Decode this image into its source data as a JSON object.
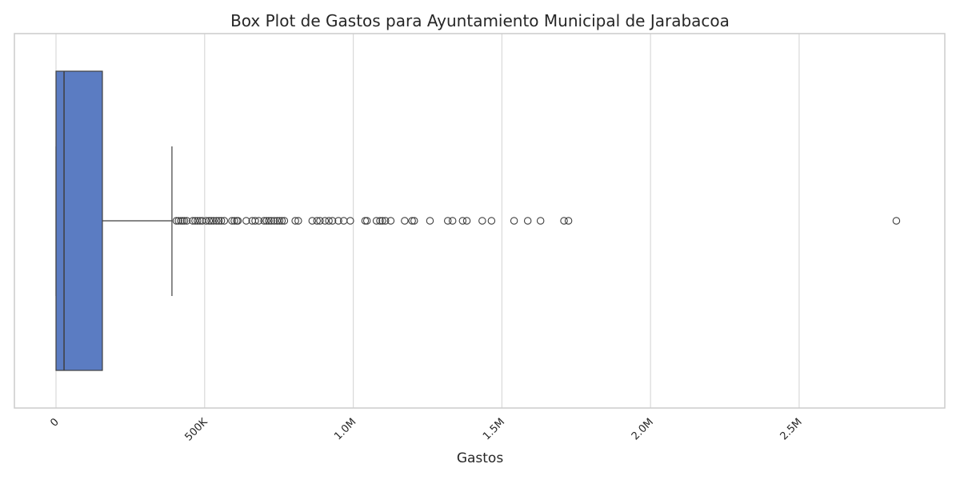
{
  "chart_data": {
    "type": "box",
    "orientation": "horizontal",
    "title": "Box Plot de Gastos para Ayuntamiento Municipal de Jarabacoa",
    "xlabel": "Gastos",
    "ylabel": "",
    "xlim": [
      -140000,
      2990000
    ],
    "grid": true,
    "colors": {
      "box_fill": "#5b7cc2",
      "line": "#3f3f3f",
      "grid": "#d9d9d9",
      "frame": "#cccccc"
    },
    "ticks": [
      {
        "value": 0,
        "label": "0"
      },
      {
        "value": 500000,
        "label": "500K"
      },
      {
        "value": 1000000,
        "label": "1.0M"
      },
      {
        "value": 1500000,
        "label": "1.5M"
      },
      {
        "value": 2000000,
        "label": "2.0M"
      },
      {
        "value": 2500000,
        "label": "2.5M"
      }
    ],
    "stats": {
      "min": 0,
      "q1": 0,
      "median": 27000,
      "q3": 156000,
      "whisker_high": 390000
    },
    "outliers": [
      405000,
      412000,
      420000,
      426000,
      432000,
      440000,
      460000,
      468000,
      476000,
      484000,
      492000,
      505000,
      515000,
      522000,
      530000,
      540000,
      548000,
      556000,
      566000,
      592000,
      600000,
      608000,
      612000,
      640000,
      660000,
      670000,
      682000,
      700000,
      708000,
      716000,
      724000,
      734000,
      744000,
      752000,
      760000,
      768000,
      805000,
      815000,
      862000,
      878000,
      888000,
      905000,
      918000,
      930000,
      950000,
      968000,
      990000,
      1040000,
      1046000,
      1078000,
      1090000,
      1098000,
      1108000,
      1126000,
      1173000,
      1198000,
      1205000,
      1258000,
      1318000,
      1334000,
      1368000,
      1382000,
      1434000,
      1465000,
      1541000,
      1587000,
      1630000,
      1709000,
      1724000,
      2827000
    ]
  }
}
